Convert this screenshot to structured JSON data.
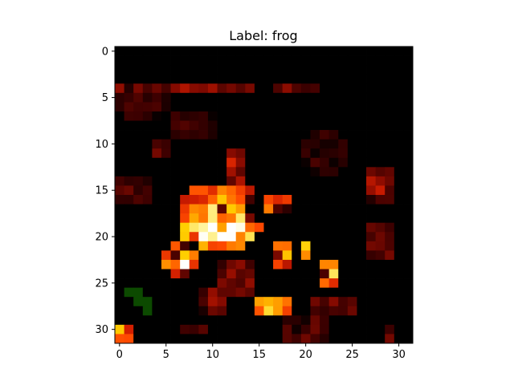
{
  "chart_data": {
    "type": "heatmap",
    "title": "Label: frog",
    "xlabel": "",
    "ylabel": "",
    "xlim": [
      -0.5,
      31.5
    ],
    "ylim": [
      31.5,
      -0.5
    ],
    "x_ticks": [
      "0",
      "5",
      "10",
      "15",
      "20",
      "25",
      "30"
    ],
    "y_ticks": [
      "0",
      "5",
      "10",
      "15",
      "20",
      "25",
      "30"
    ],
    "grid": false,
    "colormap_stops": [
      "#000000",
      "#3a0000",
      "#8a0b00",
      "#d11d00",
      "#ff4a00",
      "#ff8a00",
      "#ffd000",
      "#fff4a0",
      "#ffffff"
    ],
    "green_pixels": [
      [
        26,
        1
      ],
      [
        26,
        2
      ],
      [
        27,
        2
      ],
      [
        27,
        3
      ],
      [
        28,
        3
      ]
    ],
    "blobs": [
      {
        "row": 3.6,
        "col": 6.0,
        "rr": 0.6,
        "rc": 11.0,
        "v": 0.3
      },
      {
        "row": 3.6,
        "col": 19.0,
        "rr": 0.6,
        "rc": 4.0,
        "v": 0.26
      },
      {
        "row": 5.5,
        "col": 2.5,
        "rr": 2.5,
        "rc": 3.0,
        "v": 0.14
      },
      {
        "row": 8.0,
        "col": 8.0,
        "rr": 2.0,
        "rc": 3.0,
        "v": 0.14
      },
      {
        "row": 10.5,
        "col": 4.5,
        "rr": 1.6,
        "rc": 1.3,
        "v": 0.2
      },
      {
        "row": 11.5,
        "col": 12.5,
        "rr": 1.0,
        "rc": 1.0,
        "v": 0.45
      },
      {
        "row": 11.0,
        "col": 22.0,
        "rr": 2.5,
        "rc": 3.0,
        "v": 0.14
      },
      {
        "row": 13.5,
        "col": 12.5,
        "rr": 1.2,
        "rc": 1.5,
        "v": 0.3
      },
      {
        "row": 14.5,
        "col": 28.0,
        "rr": 2.0,
        "rc": 1.6,
        "v": 0.32
      },
      {
        "row": 15.0,
        "col": 1.5,
        "rr": 1.8,
        "rc": 2.0,
        "v": 0.18
      },
      {
        "row": 15.5,
        "col": 11.0,
        "rr": 1.0,
        "rc": 4.0,
        "v": 0.68
      },
      {
        "row": 16.5,
        "col": 8.0,
        "rr": 1.0,
        "rc": 1.5,
        "v": 0.62
      },
      {
        "row": 16.5,
        "col": 17.0,
        "rr": 1.0,
        "rc": 2.0,
        "v": 0.6
      },
      {
        "row": 19.0,
        "col": 10.8,
        "rr": 2.4,
        "rc": 4.4,
        "v": 0.95
      },
      {
        "row": 22.5,
        "col": 6.5,
        "rr": 1.7,
        "rc": 2.0,
        "v": 0.9
      },
      {
        "row": 21.5,
        "col": 20.0,
        "rr": 1.5,
        "rc": 1.0,
        "v": 0.9
      },
      {
        "row": 24.0,
        "col": 22.5,
        "rr": 1.2,
        "rc": 1.5,
        "v": 0.75
      },
      {
        "row": 22.0,
        "col": 17.5,
        "rr": 2.5,
        "rc": 0.8,
        "v": 0.7
      },
      {
        "row": 20.5,
        "col": 28.0,
        "rr": 2.5,
        "rc": 1.5,
        "v": 0.26
      },
      {
        "row": 24.5,
        "col": 12.5,
        "rr": 2.0,
        "rc": 2.5,
        "v": 0.28
      },
      {
        "row": 27.5,
        "col": 16.5,
        "rr": 1.2,
        "rc": 2.0,
        "v": 0.72
      },
      {
        "row": 27.0,
        "col": 10.0,
        "rr": 1.5,
        "rc": 1.5,
        "v": 0.3
      },
      {
        "row": 27.5,
        "col": 23.0,
        "rr": 1.5,
        "rc": 3.0,
        "v": 0.22
      },
      {
        "row": 30.0,
        "col": 20.0,
        "rr": 1.5,
        "rc": 3.0,
        "v": 0.2
      },
      {
        "row": 30.0,
        "col": 8.0,
        "rr": 1.0,
        "rc": 2.0,
        "v": 0.22
      },
      {
        "row": 30.5,
        "col": 0.3,
        "rr": 1.2,
        "rc": 0.8,
        "v": 0.75
      },
      {
        "row": 30.8,
        "col": 29.3,
        "rr": 1.0,
        "rc": 0.7,
        "v": 0.72
      }
    ]
  }
}
